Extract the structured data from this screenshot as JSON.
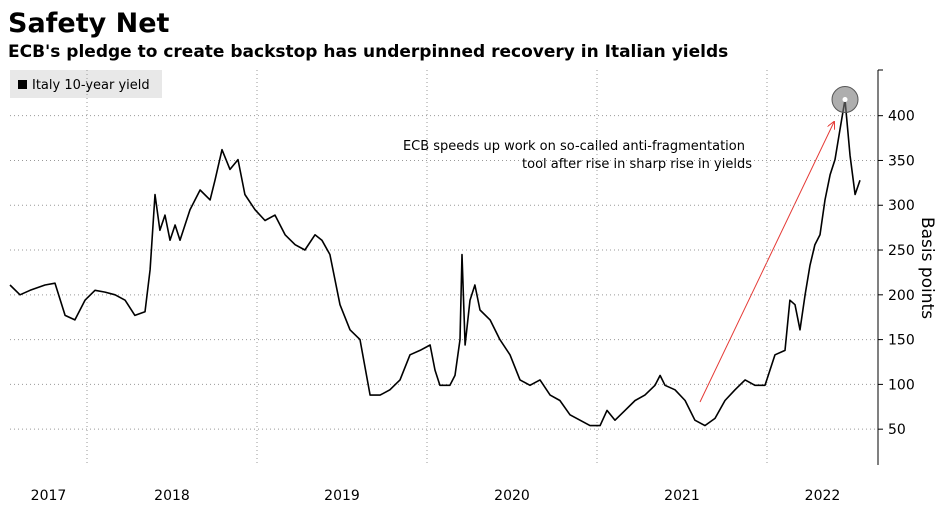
{
  "chart_data": {
    "type": "line",
    "title": "Safety Net",
    "subtitle": "ECB's pledge to create backstop has underpinned recovery in Italian yields",
    "y_label": "Basis points",
    "annotation": [
      "ECB speeds up work on so-called anti-fragmentation",
      "tool after rise in sharp rise in yields"
    ],
    "legend": "top-left",
    "grid": true,
    "xlim": [
      2017.547,
      2022.653
    ],
    "ylim": [
      10,
      451
    ],
    "xticks": [
      {
        "value": 2017,
        "label": "2017"
      },
      {
        "value": 2018,
        "label": "2018"
      },
      {
        "value": 2019,
        "label": "2019"
      },
      {
        "value": 2020,
        "label": "2020"
      },
      {
        "value": 2021,
        "label": "2021"
      },
      {
        "value": 2022,
        "label": "2022"
      }
    ],
    "yticks": [
      50,
      100,
      150,
      200,
      250,
      300,
      350,
      400
    ],
    "x": [
      2017.547,
      2017.606,
      2017.665,
      2017.753,
      2017.812,
      2017.871,
      2017.929,
      2017.988,
      2018.047,
      2018.106,
      2018.165,
      2018.224,
      2018.282,
      2018.341,
      2018.371,
      2018.4,
      2018.429,
      2018.459,
      2018.488,
      2018.518,
      2018.547,
      2018.606,
      2018.665,
      2018.724,
      2018.753,
      2018.794,
      2018.841,
      2018.888,
      2018.929,
      2018.988,
      2019.047,
      2019.106,
      2019.165,
      2019.224,
      2019.282,
      2019.341,
      2019.382,
      2019.429,
      2019.488,
      2019.547,
      2019.606,
      2019.665,
      2019.724,
      2019.782,
      2019.841,
      2019.9,
      2019.959,
      2020.018,
      2020.047,
      2020.076,
      2020.135,
      2020.165,
      2020.194,
      2020.206,
      2020.224,
      2020.253,
      2020.282,
      2020.312,
      2020.371,
      2020.429,
      2020.488,
      2020.547,
      2020.606,
      2020.665,
      2020.724,
      2020.782,
      2020.841,
      2020.9,
      2020.959,
      2021.018,
      2021.059,
      2021.106,
      2021.165,
      2021.224,
      2021.282,
      2021.341,
      2021.371,
      2021.4,
      2021.459,
      2021.518,
      2021.576,
      2021.635,
      2021.694,
      2021.753,
      2021.812,
      2021.871,
      2021.929,
      2021.988,
      2022.047,
      2022.106,
      2022.135,
      2022.165,
      2022.194,
      2022.224,
      2022.253,
      2022.282,
      2022.312,
      2022.341,
      2022.371,
      2022.4,
      2022.429,
      2022.459,
      2022.488,
      2022.518,
      2022.547
    ],
    "series": [
      {
        "name": "Italy 10-year yield",
        "color": "#000000",
        "values": [
          211,
          200,
          205,
          211,
          213,
          177,
          172,
          194,
          205,
          203,
          200,
          194,
          177,
          181,
          228,
          312,
          272,
          289,
          261,
          278,
          261,
          295,
          317,
          306,
          328,
          362,
          340,
          351,
          312,
          295,
          283,
          289,
          267,
          256,
          250,
          267,
          261,
          245,
          189,
          161,
          150,
          88,
          88,
          94,
          105,
          133,
          138,
          144,
          116,
          99,
          99,
          110,
          150,
          245,
          144,
          194,
          211,
          183,
          172,
          150,
          133,
          105,
          99,
          105,
          88,
          82,
          66,
          60,
          54,
          54,
          71,
          60,
          71,
          82,
          88,
          99,
          110,
          99,
          94,
          82,
          60,
          54,
          62,
          82,
          94,
          105,
          99,
          99,
          133,
          138,
          194,
          189,
          161,
          200,
          233,
          256,
          267,
          306,
          334,
          351,
          384,
          418,
          356,
          312,
          328
        ]
      }
    ]
  }
}
